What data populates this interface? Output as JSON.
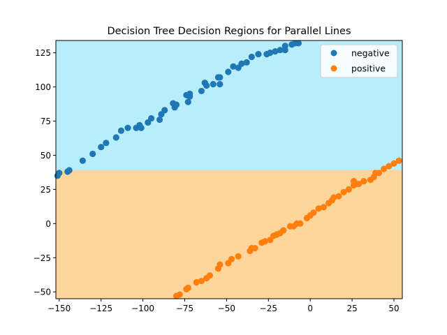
{
  "chart_data": {
    "type": "scatter",
    "title": "Decision Tree Decision Regions for Parallel Lines",
    "xlabel": "",
    "ylabel": "",
    "xlim": [
      -152,
      55
    ],
    "ylim": [
      -55,
      134
    ],
    "xticks": [
      -150,
      -125,
      -100,
      -75,
      -50,
      -25,
      0,
      25,
      50
    ],
    "yticks": [
      -50,
      -25,
      0,
      25,
      50,
      75,
      100,
      125
    ],
    "grid": false,
    "legend_position": "top-right",
    "decision_threshold_y": 39,
    "regions": [
      {
        "class": "negative",
        "y_from": 39,
        "y_to": 134,
        "color": "#b8eefc"
      },
      {
        "class": "positive",
        "y_from": -55,
        "y_to": 39,
        "color": "#fed59b"
      }
    ],
    "series": [
      {
        "name": "negative",
        "color": "#1f77b4",
        "points": [
          [
            -151,
            35
          ],
          [
            -150,
            37
          ],
          [
            -145,
            38
          ],
          [
            -144,
            39
          ],
          [
            -136,
            46
          ],
          [
            -130,
            51
          ],
          [
            -125,
            56
          ],
          [
            -122,
            59
          ],
          [
            -116,
            63
          ],
          [
            -113,
            68
          ],
          [
            -109,
            70
          ],
          [
            -104,
            70
          ],
          [
            -102,
            72
          ],
          [
            -101,
            70
          ],
          [
            -97,
            74
          ],
          [
            -95,
            77
          ],
          [
            -90,
            76
          ],
          [
            -89,
            80
          ],
          [
            -87,
            83
          ],
          [
            -82,
            88
          ],
          [
            -81,
            85
          ],
          [
            -80,
            87
          ],
          [
            -74,
            94
          ],
          [
            -73,
            89
          ],
          [
            -72,
            93
          ],
          [
            -72,
            95
          ],
          [
            -65,
            97
          ],
          [
            -63,
            103
          ],
          [
            -62,
            101
          ],
          [
            -58,
            102
          ],
          [
            -55,
            107
          ],
          [
            -54,
            107
          ],
          [
            -54,
            102
          ],
          [
            -49,
            111
          ],
          [
            -46,
            115
          ],
          [
            -43,
            114
          ],
          [
            -41,
            117
          ],
          [
            -38,
            118
          ],
          [
            -35,
            122
          ],
          [
            -31,
            124
          ],
          [
            -26,
            124
          ],
          [
            -24,
            125
          ],
          [
            -21,
            126
          ],
          [
            -18,
            127
          ],
          [
            -15,
            127
          ],
          [
            -15,
            130
          ],
          [
            -11,
            131
          ],
          [
            -9,
            132
          ],
          [
            -7,
            132
          ]
        ]
      },
      {
        "name": "positive",
        "color": "#ff7f0e",
        "points": [
          [
            -80,
            -53
          ],
          [
            -78,
            -52
          ],
          [
            -74,
            -48
          ],
          [
            -73,
            -47
          ],
          [
            -68,
            -43
          ],
          [
            -65,
            -42
          ],
          [
            -62,
            -40
          ],
          [
            -60,
            -38
          ],
          [
            -55,
            -33
          ],
          [
            -54,
            -30
          ],
          [
            -49,
            -29
          ],
          [
            -47,
            -26
          ],
          [
            -43,
            -24
          ],
          [
            -36,
            -20
          ],
          [
            -35,
            -18
          ],
          [
            -33,
            -18
          ],
          [
            -29,
            -14
          ],
          [
            -27,
            -13
          ],
          [
            -24,
            -12
          ],
          [
            -22,
            -9
          ],
          [
            -20,
            -8
          ],
          [
            -18,
            -7
          ],
          [
            -16,
            -5
          ],
          [
            -12,
            -2
          ],
          [
            -10,
            -2
          ],
          [
            -8,
            0
          ],
          [
            -6,
            0
          ],
          [
            -2,
            4
          ],
          [
            0,
            6
          ],
          [
            2,
            8
          ],
          [
            5,
            11
          ],
          [
            8,
            12
          ],
          [
            11,
            15
          ],
          [
            13,
            17
          ],
          [
            14,
            19
          ],
          [
            17,
            20
          ],
          [
            20,
            23
          ],
          [
            23,
            25
          ],
          [
            26,
            28
          ],
          [
            26,
            31
          ],
          [
            28,
            29
          ],
          [
            29,
            29
          ],
          [
            32,
            31
          ],
          [
            36,
            32
          ],
          [
            38,
            34
          ],
          [
            39,
            37
          ],
          [
            41,
            37
          ],
          [
            44,
            40
          ],
          [
            47,
            42
          ],
          [
            50,
            44
          ],
          [
            53,
            46
          ]
        ]
      }
    ]
  },
  "legend": {
    "items": [
      {
        "label": "negative",
        "color": "#1f77b4"
      },
      {
        "label": "positive",
        "color": "#ff7f0e"
      }
    ]
  }
}
